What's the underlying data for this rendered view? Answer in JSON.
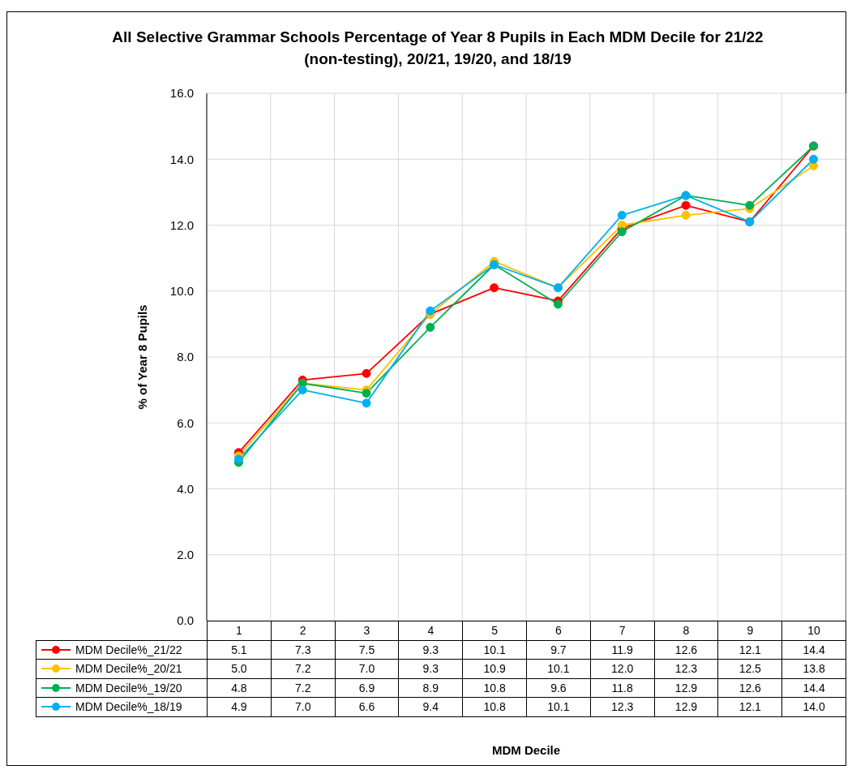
{
  "chart_data": {
    "type": "line",
    "title": "All Selective Grammar Schools  Percentage of Year 8 Pupils in Each MDM Decile for 21/22 (non-testing), 20/21, 19/20, and 18/19",
    "annotations": [
      "MDM Decile"
    ],
    "ylabel": "% of Year 8 Pupils",
    "categories": [
      "1",
      "2",
      "3",
      "4",
      "5",
      "6",
      "7",
      "8",
      "9",
      "10"
    ],
    "series": [
      {
        "name": "MDM Decile%_21/22",
        "color": "#ff0000",
        "values": [
          5.1,
          7.3,
          7.5,
          9.3,
          10.1,
          9.7,
          11.9,
          12.6,
          12.1,
          14.4
        ],
        "value_labels": [
          "5.1",
          "7.3",
          "7.5",
          "9.3",
          "10.1",
          "9.7",
          "11.9",
          "12.6",
          "12.1",
          "14.4"
        ]
      },
      {
        "name": "MDM Decile%_20/21",
        "color": "#ffc000",
        "values": [
          5.0,
          7.2,
          7.0,
          9.3,
          10.9,
          10.1,
          12.0,
          12.3,
          12.5,
          13.8
        ],
        "value_labels": [
          "5.0",
          "7.2",
          "7.0",
          "9.3",
          "10.9",
          "10.1",
          "12.0",
          "12.3",
          "12.5",
          "13.8"
        ]
      },
      {
        "name": "MDM Decile%_19/20",
        "color": "#00b050",
        "values": [
          4.8,
          7.2,
          6.9,
          8.9,
          10.8,
          9.6,
          11.8,
          12.9,
          12.6,
          14.4
        ],
        "value_labels": [
          "4.8",
          "7.2",
          "6.9",
          "8.9",
          "10.8",
          "9.6",
          "11.8",
          "12.9",
          "12.6",
          "14.4"
        ]
      },
      {
        "name": "MDM Decile%_18/19",
        "color": "#00b0f0",
        "values": [
          4.9,
          7.0,
          6.6,
          9.4,
          10.8,
          10.1,
          12.3,
          12.9,
          12.1,
          14.0
        ],
        "value_labels": [
          "4.9",
          "7.0",
          "6.6",
          "9.4",
          "10.8",
          "10.1",
          "12.3",
          "12.9",
          "12.1",
          "14.0"
        ]
      }
    ],
    "ylim": [
      0,
      16
    ],
    "yticks": [
      {
        "value": 0,
        "label": "0.0"
      },
      {
        "value": 2,
        "label": "2.0"
      },
      {
        "value": 4,
        "label": "4.0"
      },
      {
        "value": 6,
        "label": "6.0"
      },
      {
        "value": 8,
        "label": "8.0"
      },
      {
        "value": 10,
        "label": "10.0"
      },
      {
        "value": 12,
        "label": "12.0"
      },
      {
        "value": 14,
        "label": "14.0"
      },
      {
        "value": 16,
        "label": "16.0"
      }
    ],
    "grid": true,
    "legend": "bottom",
    "marker": "circle",
    "line_style": "solid"
  }
}
